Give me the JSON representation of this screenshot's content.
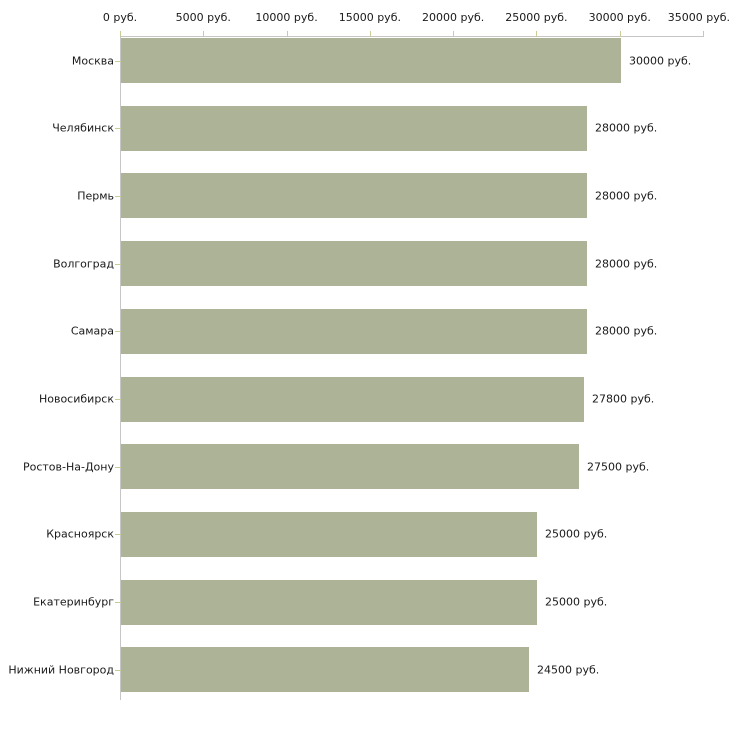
{
  "chart_data": {
    "type": "bar",
    "orientation": "horizontal",
    "categories": [
      "Москва",
      "Челябинск",
      "Пермь",
      "Волгоград",
      "Самара",
      "Новосибирск",
      "Ростов-На-Дону",
      "Красноярск",
      "Екатеринбург",
      "Нижний Новгород"
    ],
    "values": [
      30000,
      28000,
      28000,
      28000,
      28000,
      27800,
      27500,
      25000,
      25000,
      24500
    ],
    "value_labels": [
      "30000 руб.",
      "28000 руб.",
      "28000 руб.",
      "28000 руб.",
      "28000 руб.",
      "27800 руб.",
      "27500 руб.",
      "25000 руб.",
      "25000 руб.",
      "24500 руб."
    ],
    "x_tick_values": [
      0,
      5000,
      10000,
      15000,
      20000,
      25000,
      30000,
      35000
    ],
    "x_tick_labels": [
      "0 руб.",
      "5000 руб.",
      "10000 руб.",
      "15000 руб.",
      "20000 руб.",
      "25000 руб.",
      "30000 руб.",
      "35000 руб."
    ],
    "xlim": [
      0,
      35000
    ],
    "unit": "руб.",
    "title": "",
    "grid": false,
    "legend": false,
    "colors": {
      "bar": "#adb396",
      "axis": "#c6c6c6",
      "tick": "#c8cc96",
      "text": "#1a1a1a",
      "background": "#ffffff"
    }
  }
}
